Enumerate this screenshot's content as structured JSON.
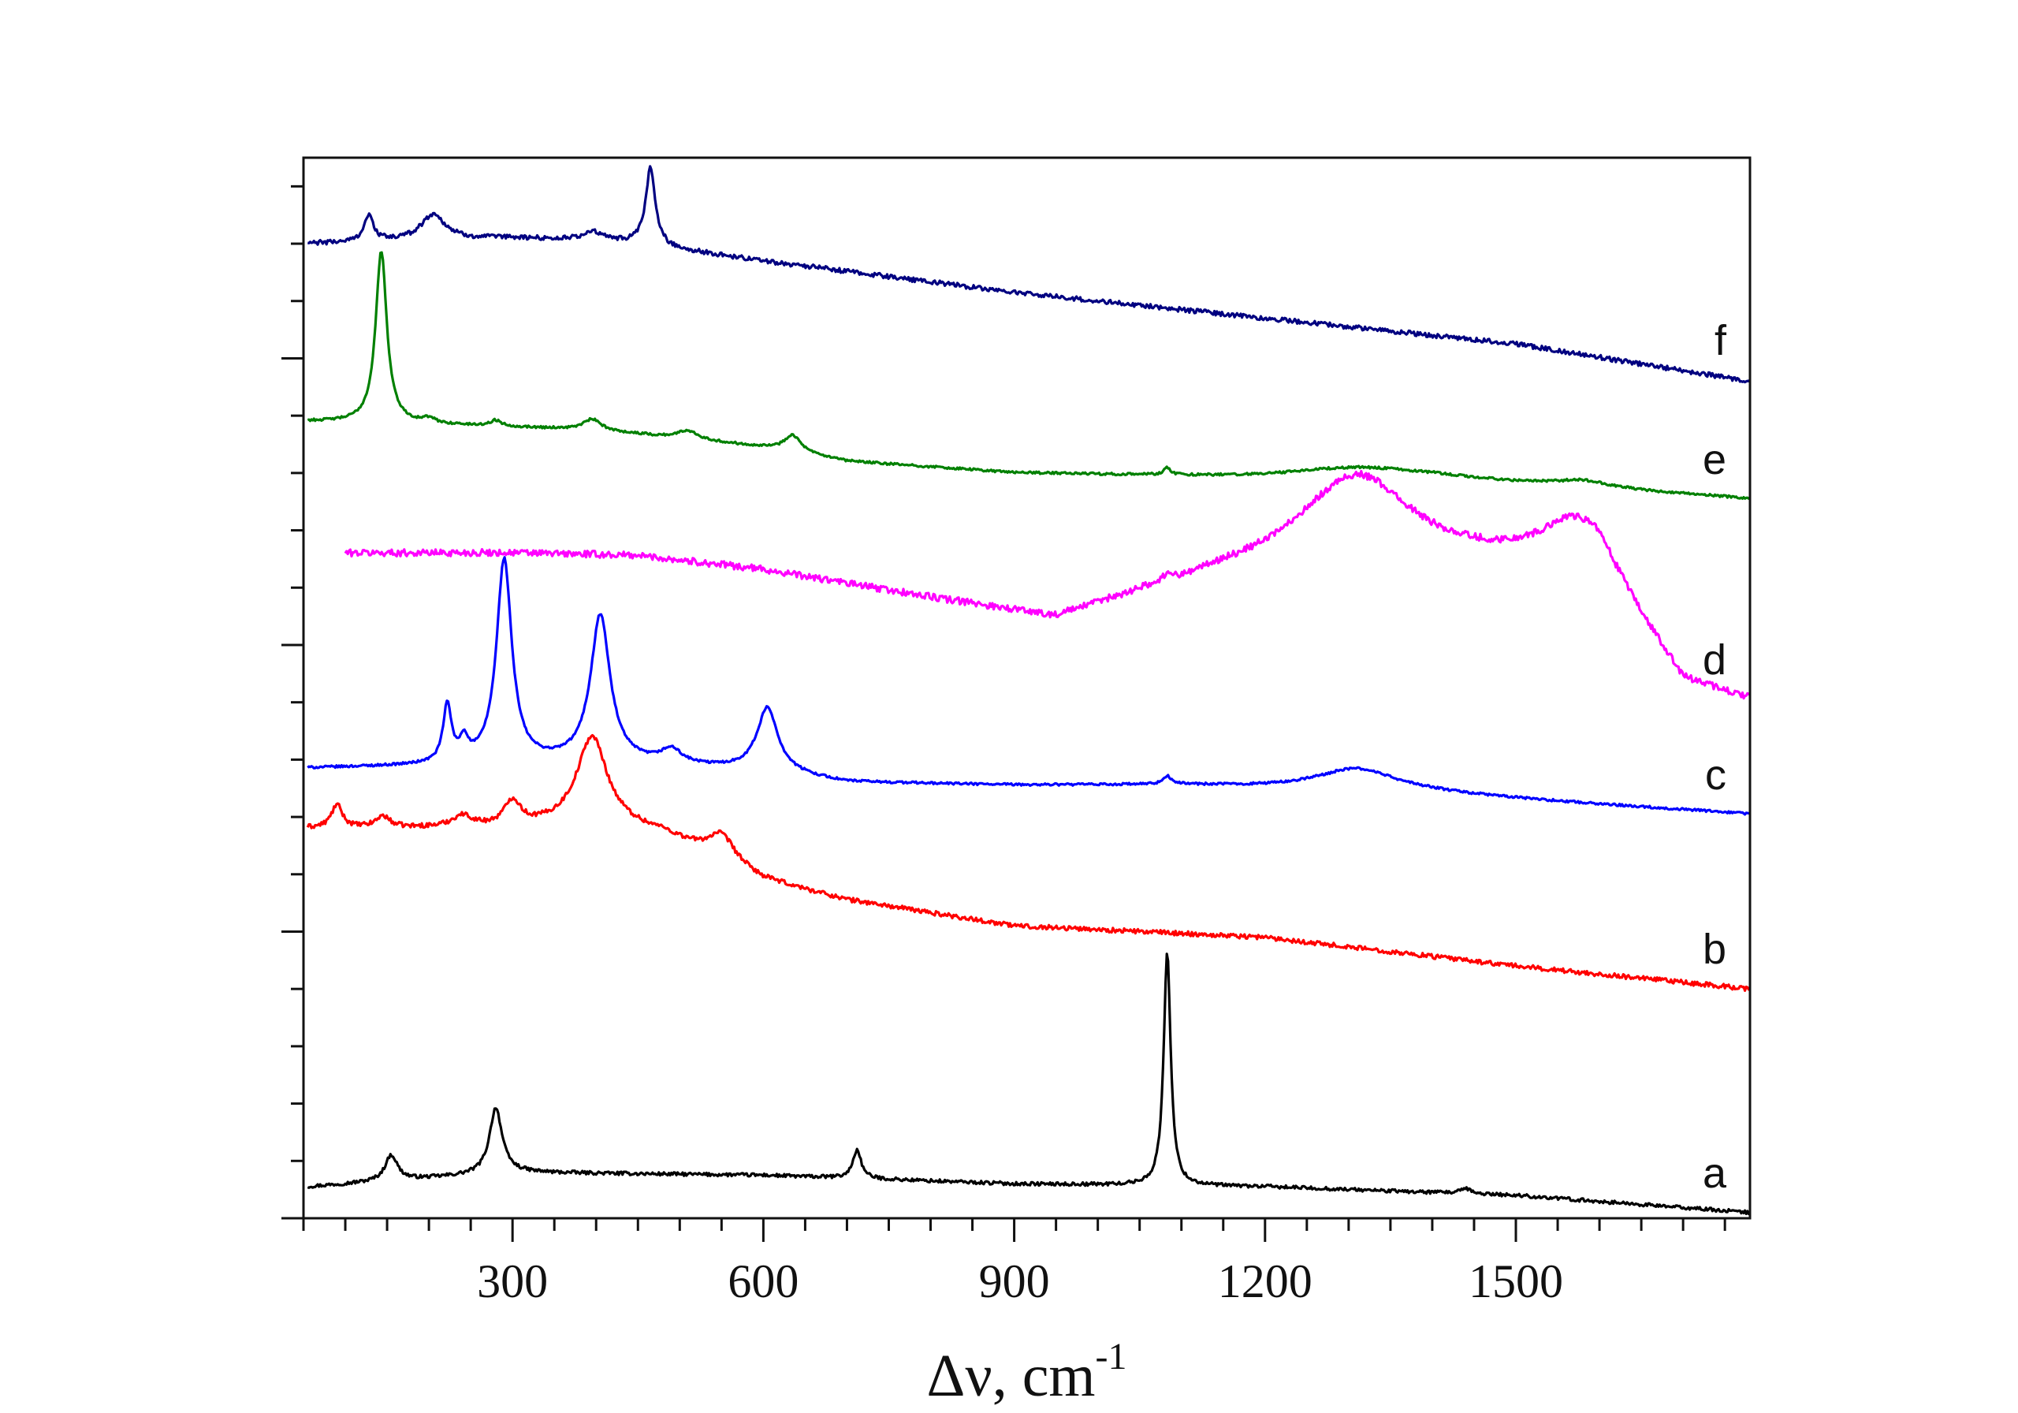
{
  "chart_data": {
    "type": "line",
    "title": "",
    "xlabel": "Δν, cm",
    "xlabel_superscript": "-1",
    "ylabel": "",
    "xlim": [
      50,
      1780
    ],
    "ylim": [
      0,
      1850
    ],
    "xticks_major": [
      300,
      600,
      900,
      1200,
      1500
    ],
    "xticks_major_labels": [
      "300",
      "600",
      "900",
      "1200",
      "1500"
    ],
    "xticks_minor_step": 50,
    "yticks_major": [
      0,
      500,
      1000,
      1500
    ],
    "yticks_minor_step": 100,
    "ytick_labels_shown": false,
    "grid": false,
    "legend": "none",
    "series": [
      {
        "name": "a",
        "color": "#000000",
        "baseline": [
          [
            55,
            55
          ],
          [
            300,
            80
          ],
          [
            600,
            75
          ],
          [
            900,
            60
          ],
          [
            1200,
            55
          ],
          [
            1500,
            40
          ],
          [
            1780,
            10
          ]
        ],
        "peaks": [
          [
            155,
            45,
            9
          ],
          [
            280,
            115,
            9
          ],
          [
            712,
            50,
            6
          ],
          [
            1083,
            410,
            5
          ],
          [
            1440,
            8,
            8
          ]
        ],
        "noise": 3
      },
      {
        "name": "b",
        "color": "#ff0000",
        "baseline": [
          [
            55,
            680
          ],
          [
            300,
            680
          ],
          [
            400,
            690
          ],
          [
            480,
            670
          ],
          [
            600,
            590
          ],
          [
            700,
            555
          ],
          [
            900,
            510
          ],
          [
            1200,
            490
          ],
          [
            1500,
            440
          ],
          [
            1780,
            400
          ]
        ],
        "peaks": [
          [
            90,
            40,
            8
          ],
          [
            145,
            20,
            10
          ],
          [
            240,
            20,
            15
          ],
          [
            300,
            45,
            12
          ],
          [
            395,
            150,
            22
          ],
          [
            550,
            45,
            20
          ]
        ],
        "noise": 4
      },
      {
        "name": "c",
        "color": "#0000ff",
        "baseline": [
          [
            55,
            785
          ],
          [
            250,
            790
          ],
          [
            400,
            795
          ],
          [
            600,
            780
          ],
          [
            700,
            760
          ],
          [
            900,
            755
          ],
          [
            1100,
            755
          ],
          [
            1400,
            740
          ],
          [
            1780,
            705
          ]
        ],
        "peaks": [
          [
            222,
            100,
            6
          ],
          [
            242,
            35,
            6
          ],
          [
            290,
            355,
            11
          ],
          [
            405,
            255,
            14
          ],
          [
            490,
            25,
            15
          ],
          [
            605,
            110,
            15
          ],
          [
            1083,
            15,
            5
          ],
          [
            1310,
            40,
            60
          ]
        ],
        "noise": 2
      },
      {
        "name": "d",
        "color": "#ff00ff",
        "baseline": [
          [
            100,
            1160
          ],
          [
            300,
            1160
          ],
          [
            450,
            1155
          ],
          [
            600,
            1130
          ],
          [
            800,
            1080
          ],
          [
            950,
            1045
          ],
          [
            1060,
            1090
          ],
          [
            1150,
            1120
          ],
          [
            1250,
            1140
          ],
          [
            1450,
            1140
          ],
          [
            1600,
            1130
          ],
          [
            1650,
            1030
          ],
          [
            1700,
            930
          ],
          [
            1780,
            900
          ]
        ],
        "peaks": [
          [
            1310,
            155,
            80
          ],
          [
            1570,
            80,
            50
          ],
          [
            1083,
            12,
            5
          ]
        ],
        "noise": 6
      },
      {
        "name": "e",
        "color": "#008000",
        "baseline": [
          [
            55,
            1390
          ],
          [
            200,
            1385
          ],
          [
            400,
            1375
          ],
          [
            600,
            1345
          ],
          [
            700,
            1320
          ],
          [
            900,
            1300
          ],
          [
            1200,
            1290
          ],
          [
            1400,
            1290
          ],
          [
            1780,
            1255
          ]
        ],
        "peaks": [
          [
            143,
            300,
            8
          ],
          [
            200,
            8,
            8
          ],
          [
            280,
            10,
            8
          ],
          [
            395,
            18,
            12
          ],
          [
            510,
            15,
            15
          ],
          [
            635,
            30,
            12
          ],
          [
            1083,
            12,
            5
          ],
          [
            1310,
            20,
            100
          ],
          [
            1580,
            12,
            40
          ]
        ],
        "noise": 2
      },
      {
        "name": "f",
        "color": "#000080",
        "baseline": [
          [
            55,
            1700
          ],
          [
            300,
            1710
          ],
          [
            420,
            1705
          ],
          [
            600,
            1670
          ],
          [
            900,
            1615
          ],
          [
            1200,
            1570
          ],
          [
            1500,
            1525
          ],
          [
            1780,
            1460
          ]
        ],
        "peaks": [
          [
            128,
            45,
            7
          ],
          [
            205,
            45,
            18
          ],
          [
            395,
            15,
            12
          ],
          [
            465,
            135,
            7
          ]
        ],
        "noise": 4
      }
    ]
  }
}
